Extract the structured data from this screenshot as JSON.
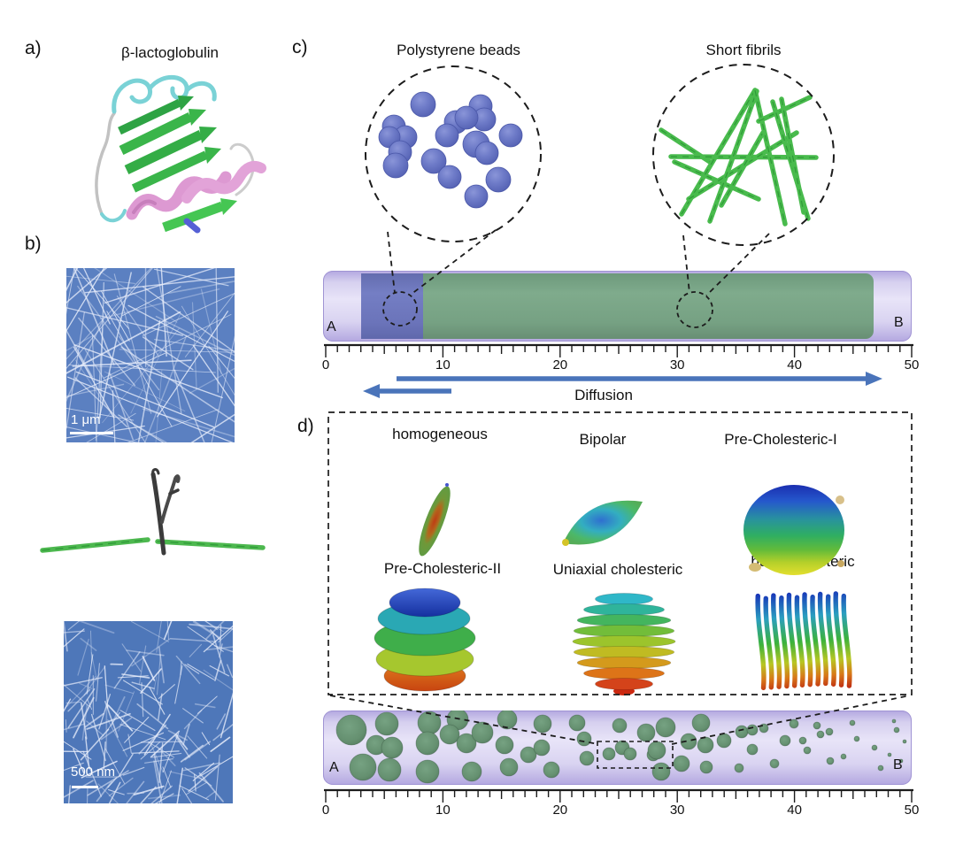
{
  "figure": {
    "panel_a": {
      "label": "a)",
      "title": "β-lactoglobulin"
    },
    "panel_b": {
      "label": "b)",
      "scalebar_top": "1 μm",
      "scalebar_bottom": "500 nm"
    },
    "panel_c": {
      "label": "c)",
      "inset_left_title": "Polystyrene beads",
      "inset_right_title": "Short fibrils",
      "capillary_left_label": "A",
      "capillary_right_label": "B",
      "diffusion_label": "Diffusion",
      "ruler_labels": [
        "0",
        "10",
        "20",
        "30",
        "40",
        "50"
      ]
    },
    "panel_d": {
      "label": "d)",
      "phase_labels": [
        "homogeneous",
        "Bipolar",
        "Pre-Cholesteric-I",
        "Pre-Cholesteric-II",
        "Uniaxial cholesteric",
        "bulk cholesteric"
      ],
      "capillary_left_label": "A",
      "capillary_right_label": "B",
      "ruler_labels": [
        "0",
        "10",
        "20",
        "30",
        "40",
        "50"
      ]
    },
    "colors": {
      "arrow_blue": "#4a74ba",
      "bead_blue": "#6b79c5",
      "fibril_green": "#49bb4d",
      "tube_lavender": "#d6d0ef",
      "beads_zone_blue": "#6b74ba",
      "fibril_zone_green": "#76a183",
      "droplet_green": "#679672",
      "afm_background_blue": "#5b80c1"
    }
  }
}
